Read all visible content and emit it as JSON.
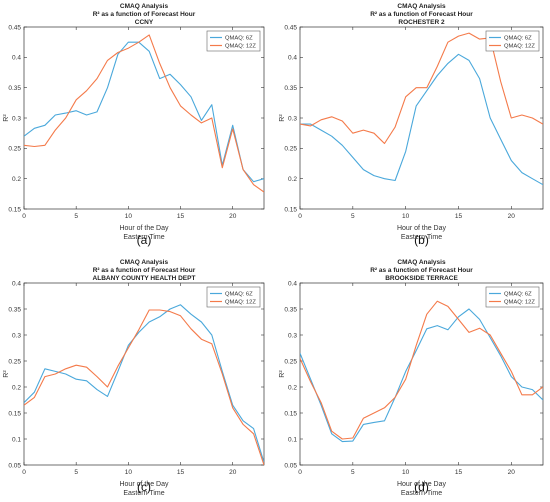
{
  "colors": {
    "series_6z": "#4aa8db",
    "series_12z": "#f47a4a",
    "axis": "#333333"
  },
  "chart_data": [
    {
      "type": "line",
      "panel_label": "(a)",
      "title": "CMAQ Analysis",
      "subtitle": "R² as a function of Forecast Hour",
      "site": "CCNY",
      "xlabel": "Hour of the Day",
      "xlabel2": "Eastern Time",
      "ylabel": "R²",
      "xlim": [
        0,
        23
      ],
      "ylim": [
        0.15,
        0.45
      ],
      "xticks": [
        0,
        5,
        10,
        15,
        20
      ],
      "yticks": [
        0.15,
        0.2,
        0.25,
        0.3,
        0.35,
        0.4,
        0.45
      ],
      "ytick_labels": [
        "0.15",
        "0.2",
        "0.25",
        "0.3",
        "0.35",
        "0.4",
        "0.45"
      ],
      "legend_position": "top-right",
      "grid": false,
      "x": [
        0,
        1,
        2,
        3,
        4,
        5,
        6,
        7,
        8,
        9,
        10,
        11,
        12,
        13,
        14,
        15,
        16,
        17,
        18,
        19,
        20,
        21,
        22,
        23
      ],
      "series": [
        {
          "name": "QMAQ: 6Z",
          "color_key": "series_6z",
          "values": [
            0.27,
            0.283,
            0.288,
            0.305,
            0.308,
            0.312,
            0.305,
            0.31,
            0.35,
            0.405,
            0.425,
            0.425,
            0.41,
            0.365,
            0.372,
            0.355,
            0.335,
            0.296,
            0.322,
            0.222,
            0.288,
            0.215,
            0.195,
            0.2
          ]
        },
        {
          "name": "QMAQ: 12Z",
          "color_key": "series_12z",
          "values": [
            0.255,
            0.253,
            0.255,
            0.28,
            0.3,
            0.33,
            0.345,
            0.365,
            0.395,
            0.408,
            0.415,
            0.425,
            0.437,
            0.39,
            0.35,
            0.32,
            0.305,
            0.292,
            0.3,
            0.218,
            0.282,
            0.215,
            0.19,
            0.178
          ]
        }
      ]
    },
    {
      "type": "line",
      "panel_label": "(b)",
      "title": "CMAQ Analysis",
      "subtitle": "R² as a function of Forecast Hour",
      "site": "ROCHESTER 2",
      "xlabel": "Hour of the Day",
      "xlabel2": "Eastern Time",
      "ylabel": "R²",
      "xlim": [
        0,
        23
      ],
      "ylim": [
        0.15,
        0.45
      ],
      "xticks": [
        0,
        5,
        10,
        15,
        20
      ],
      "yticks": [
        0.15,
        0.2,
        0.25,
        0.3,
        0.35,
        0.4,
        0.45
      ],
      "ytick_labels": [
        "0.15",
        "0.2",
        "0.25",
        "0.3",
        "0.35",
        "0.4",
        "0.45"
      ],
      "legend_position": "top-right",
      "grid": false,
      "x": [
        0,
        1,
        2,
        3,
        4,
        5,
        6,
        7,
        8,
        9,
        10,
        11,
        12,
        13,
        14,
        15,
        16,
        17,
        18,
        19,
        20,
        21,
        22,
        23
      ],
      "series": [
        {
          "name": "QMAQ: 6Z",
          "color_key": "series_6z",
          "values": [
            0.29,
            0.29,
            0.28,
            0.27,
            0.255,
            0.235,
            0.215,
            0.205,
            0.2,
            0.197,
            0.245,
            0.32,
            0.345,
            0.37,
            0.39,
            0.405,
            0.395,
            0.365,
            0.3,
            0.265,
            0.23,
            0.21,
            0.2,
            0.19
          ]
        },
        {
          "name": "QMAQ: 12Z",
          "color_key": "series_12z",
          "values": [
            0.29,
            0.287,
            0.297,
            0.302,
            0.295,
            0.275,
            0.28,
            0.275,
            0.258,
            0.285,
            0.335,
            0.35,
            0.35,
            0.385,
            0.425,
            0.435,
            0.44,
            0.43,
            0.432,
            0.36,
            0.3,
            0.305,
            0.3,
            0.29
          ]
        }
      ]
    },
    {
      "type": "line",
      "panel_label": "(c)",
      "title": "CMAQ Analysis",
      "subtitle": "R² as a function of Forecast Hour",
      "site": "ALBANY COUNTY HEALTH DEPT",
      "xlabel": "Hour of the Day",
      "xlabel2": "Eastern Time",
      "ylabel": "R²",
      "xlim": [
        0,
        23
      ],
      "ylim": [
        0.05,
        0.4
      ],
      "xticks": [
        0,
        5,
        10,
        15,
        20
      ],
      "yticks": [
        0.05,
        0.1,
        0.15,
        0.2,
        0.25,
        0.3,
        0.35,
        0.4
      ],
      "ytick_labels": [
        "0.05",
        "0.1",
        "0.15",
        "0.2",
        "0.25",
        "0.3",
        "0.35",
        "0.4"
      ],
      "legend_position": "top-right",
      "grid": false,
      "x": [
        0,
        1,
        2,
        3,
        4,
        5,
        6,
        7,
        8,
        9,
        10,
        11,
        12,
        13,
        14,
        15,
        16,
        17,
        18,
        19,
        20,
        21,
        22,
        23
      ],
      "series": [
        {
          "name": "QMAQ: 6Z",
          "color_key": "series_6z",
          "values": [
            0.17,
            0.19,
            0.235,
            0.23,
            0.225,
            0.215,
            0.212,
            0.195,
            0.182,
            0.23,
            0.28,
            0.305,
            0.325,
            0.335,
            0.35,
            0.358,
            0.34,
            0.325,
            0.3,
            0.23,
            0.165,
            0.135,
            0.12,
            0.055
          ]
        },
        {
          "name": "QMAQ: 12Z",
          "color_key": "series_12z",
          "values": [
            0.165,
            0.18,
            0.22,
            0.225,
            0.235,
            0.242,
            0.238,
            0.22,
            0.2,
            0.24,
            0.275,
            0.31,
            0.348,
            0.348,
            0.345,
            0.337,
            0.312,
            0.292,
            0.283,
            0.225,
            0.16,
            0.128,
            0.11,
            0.05
          ]
        }
      ]
    },
    {
      "type": "line",
      "panel_label": "(d)",
      "title": "CMAQ Analysis",
      "subtitle": "R² as a function of Forecast Hour",
      "site": "BROOKSIDE TERRACE",
      "xlabel": "Hour of the Day",
      "xlabel2": "Eastern Time",
      "ylabel": "R²",
      "xlim": [
        0,
        23
      ],
      "ylim": [
        0.05,
        0.4
      ],
      "xticks": [
        0,
        5,
        10,
        15,
        20
      ],
      "yticks": [
        0.05,
        0.1,
        0.15,
        0.2,
        0.25,
        0.3,
        0.35,
        0.4
      ],
      "ytick_labels": [
        "0.05",
        "0.1",
        "0.15",
        "0.2",
        "0.25",
        "0.3",
        "0.35",
        "0.4"
      ],
      "legend_position": "top-right",
      "grid": false,
      "x": [
        0,
        1,
        2,
        3,
        4,
        5,
        6,
        7,
        8,
        9,
        10,
        11,
        12,
        13,
        14,
        15,
        16,
        17,
        18,
        19,
        20,
        21,
        22,
        23
      ],
      "series": [
        {
          "name": "QMAQ: 6Z",
          "color_key": "series_6z",
          "values": [
            0.265,
            0.215,
            0.165,
            0.11,
            0.095,
            0.096,
            0.128,
            0.132,
            0.135,
            0.18,
            0.23,
            0.27,
            0.312,
            0.318,
            0.31,
            0.335,
            0.35,
            0.33,
            0.295,
            0.26,
            0.22,
            0.2,
            0.195,
            0.175
          ]
        },
        {
          "name": "QMAQ: 12Z",
          "color_key": "series_12z",
          "values": [
            0.255,
            0.21,
            0.17,
            0.115,
            0.1,
            0.102,
            0.14,
            0.15,
            0.16,
            0.18,
            0.215,
            0.28,
            0.34,
            0.365,
            0.355,
            0.33,
            0.305,
            0.313,
            0.3,
            0.265,
            0.23,
            0.185,
            0.185,
            0.2
          ]
        }
      ]
    }
  ]
}
